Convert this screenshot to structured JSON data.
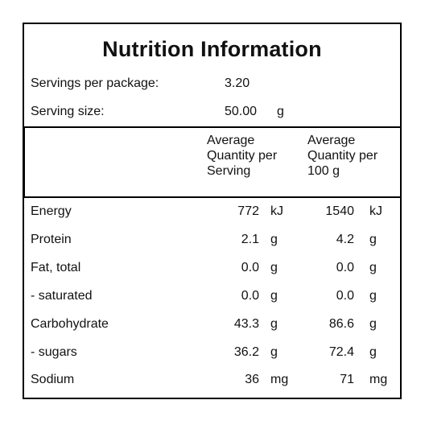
{
  "title": "Nutrition Information",
  "servings": {
    "label": "Servings per package:",
    "value": "3.20"
  },
  "serving_size": {
    "label": "Serving size:",
    "value": "50.00",
    "unit": "g"
  },
  "columns": {
    "per_serving": [
      "Average",
      "Quantity per",
      "Serving"
    ],
    "per_100g": [
      "Average",
      "Quantity per",
      "100 g"
    ]
  },
  "rows": [
    {
      "label": "Energy",
      "serving": "772",
      "serving_unit": "kJ",
      "per100": "1540",
      "per100_unit": "kJ"
    },
    {
      "label": "Protein",
      "serving": "2.1",
      "serving_unit": "g",
      "per100": "4.2",
      "per100_unit": "g"
    },
    {
      "label": "Fat, total",
      "serving": "0.0",
      "serving_unit": "g",
      "per100": "0.0",
      "per100_unit": "g"
    },
    {
      "label": "- saturated",
      "serving": "0.0",
      "serving_unit": "g",
      "per100": "0.0",
      "per100_unit": "g"
    },
    {
      "label": "Carbohydrate",
      "serving": "43.3",
      "serving_unit": "g",
      "per100": "86.6",
      "per100_unit": "g"
    },
    {
      "label": "- sugars",
      "serving": "36.2",
      "serving_unit": "g",
      "per100": "72.4",
      "per100_unit": "g"
    },
    {
      "label": "Sodium",
      "serving": "36",
      "serving_unit": "mg",
      "per100": "71",
      "per100_unit": "mg"
    }
  ]
}
